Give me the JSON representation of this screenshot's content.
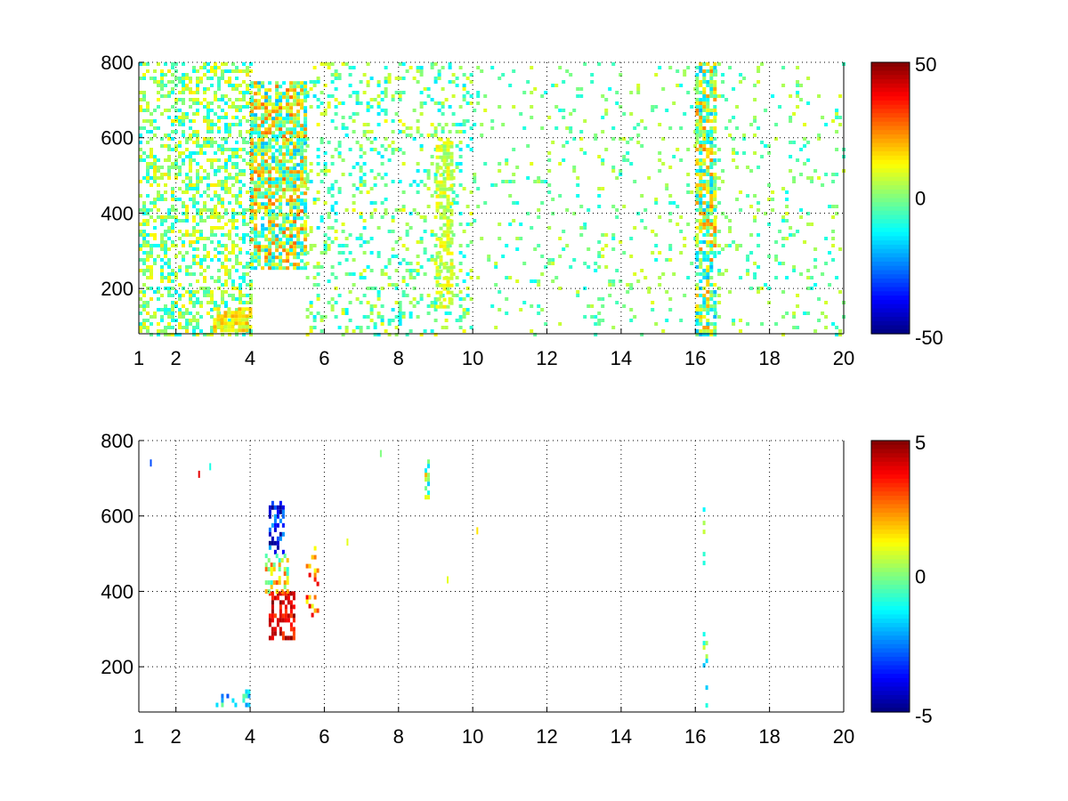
{
  "chart_data": [
    {
      "type": "heatmap",
      "title": "",
      "xlabel": "",
      "ylabel": "",
      "xlim": [
        1,
        20
      ],
      "ylim": [
        80,
        800
      ],
      "x_ticks": [
        "1",
        "2",
        "4",
        "6",
        "8",
        "10",
        "12",
        "14",
        "16",
        "18",
        "20"
      ],
      "y_ticks": [
        "200",
        "400",
        "600",
        "800"
      ],
      "grid": true,
      "colormap": "jet",
      "colorbar": {
        "min": -50,
        "max": 50,
        "ticks": [
          "50",
          "0",
          "-50"
        ]
      },
      "activity_regions": [
        {
          "x_range": [
            1.0,
            4.0
          ],
          "y_range": [
            80,
            800
          ],
          "density": 0.42,
          "value_range": [
            -15,
            15
          ]
        },
        {
          "x_range": [
            4.0,
            5.5
          ],
          "y_range": [
            250,
            750
          ],
          "density": 0.75,
          "value_range": [
            -20,
            28
          ]
        },
        {
          "x_range": [
            3.0,
            4.0
          ],
          "y_range": [
            90,
            150
          ],
          "density": 0.8,
          "value_range": [
            5,
            22
          ]
        },
        {
          "x_range": [
            5.5,
            10.0
          ],
          "y_range": [
            80,
            800
          ],
          "density": 0.2,
          "value_range": [
            -15,
            12
          ]
        },
        {
          "x_range": [
            9.0,
            9.4
          ],
          "y_range": [
            150,
            600
          ],
          "density": 0.6,
          "value_range": [
            0,
            15
          ]
        },
        {
          "x_range": [
            10.0,
            16.0
          ],
          "y_range": [
            80,
            800
          ],
          "density": 0.08,
          "value_range": [
            -12,
            10
          ]
        },
        {
          "x_range": [
            16.0,
            16.5
          ],
          "y_range": [
            80,
            800
          ],
          "density": 0.7,
          "value_range": [
            -20,
            25
          ]
        },
        {
          "x_range": [
            16.5,
            20.0
          ],
          "y_range": [
            80,
            800
          ],
          "density": 0.1,
          "value_range": [
            -12,
            10
          ]
        }
      ]
    },
    {
      "type": "heatmap",
      "title": "",
      "xlabel": "",
      "ylabel": "",
      "xlim": [
        1,
        20
      ],
      "ylim": [
        80,
        800
      ],
      "x_ticks": [
        "1",
        "2",
        "4",
        "6",
        "8",
        "10",
        "12",
        "14",
        "16",
        "18",
        "20"
      ],
      "y_ticks": [
        "200",
        "400",
        "600",
        "800"
      ],
      "grid": true,
      "colormap": "jet",
      "colorbar": {
        "min": -5,
        "max": 5,
        "ticks": [
          "5",
          "0",
          "-5"
        ]
      },
      "activity_regions": [
        {
          "x_range": [
            4.5,
            5.2
          ],
          "y_range": [
            280,
            400
          ],
          "density": 0.6,
          "value_range": [
            3,
            5
          ]
        },
        {
          "x_range": [
            4.5,
            4.9
          ],
          "y_range": [
            500,
            640
          ],
          "density": 0.5,
          "value_range": [
            -5,
            -2
          ]
        },
        {
          "x_range": [
            4.4,
            5.0
          ],
          "y_range": [
            400,
            500
          ],
          "density": 0.5,
          "value_range": [
            -1,
            3
          ]
        },
        {
          "x_range": [
            3.0,
            4.0
          ],
          "y_range": [
            100,
            140
          ],
          "density": 0.3,
          "value_range": [
            -3,
            0
          ]
        },
        {
          "x_range": [
            8.7,
            8.8
          ],
          "y_range": [
            650,
            750
          ],
          "density": 0.8,
          "value_range": [
            -2,
            2
          ]
        },
        {
          "x_range": [
            16.2,
            16.3
          ],
          "y_range": [
            80,
            670
          ],
          "density": 0.25,
          "value_range": [
            -2,
            1
          ]
        },
        {
          "x_range": [
            5.5,
            5.8
          ],
          "y_range": [
            340,
            520
          ],
          "density": 0.3,
          "value_range": [
            1,
            4
          ]
        }
      ],
      "sparse_points": [
        {
          "x": 1.3,
          "y": 750,
          "value": -3
        },
        {
          "x": 2.6,
          "y": 720,
          "value": 4
        },
        {
          "x": 2.9,
          "y": 740,
          "value": -1
        },
        {
          "x": 9.3,
          "y": 440,
          "value": 1
        },
        {
          "x": 10.1,
          "y": 570,
          "value": 1.5
        },
        {
          "x": 6.6,
          "y": 540,
          "value": 1
        },
        {
          "x": 7.5,
          "y": 775,
          "value": 0
        }
      ]
    }
  ]
}
